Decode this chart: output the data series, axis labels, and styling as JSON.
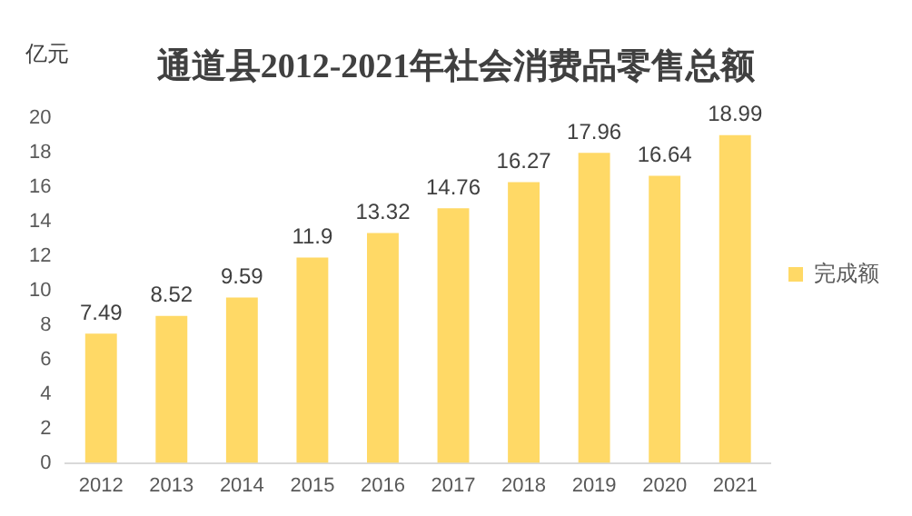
{
  "chart_data": {
    "type": "bar",
    "title": "通道县2012-2021年社会消费品零售总额",
    "ylabel": "亿元",
    "categories": [
      "2012",
      "2013",
      "2014",
      "2015",
      "2016",
      "2017",
      "2018",
      "2019",
      "2020",
      "2021"
    ],
    "series": [
      {
        "name": "完成额",
        "color": "#ffd966",
        "values": [
          7.49,
          8.52,
          9.59,
          11.9,
          13.32,
          14.76,
          16.27,
          17.96,
          16.64,
          18.99
        ]
      }
    ],
    "ylim": [
      0,
      20
    ],
    "yticks": [
      0,
      2,
      4,
      6,
      8,
      10,
      12,
      14,
      16,
      18,
      20
    ],
    "grid": false,
    "legend": "right",
    "data_labels": true
  }
}
